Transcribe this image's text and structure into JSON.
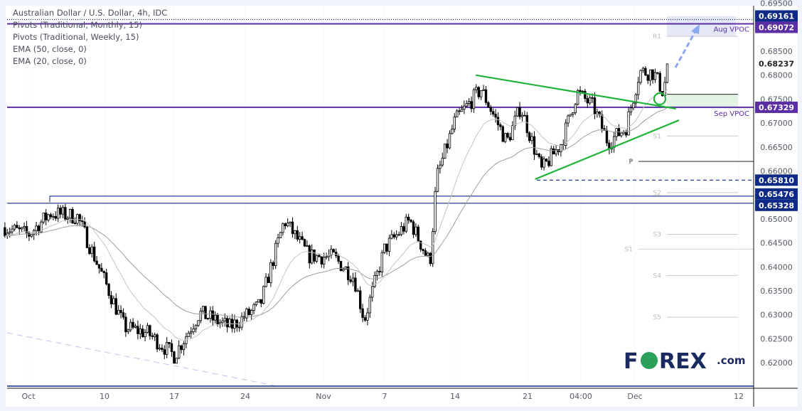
{
  "header": {
    "title": "Australian Dollar / U.S. Dollar, 4h, IDC",
    "indicators": [
      "Pivots (Traditional, Monthly, 15)",
      "Pivots (Traditional, Weekly, 15)",
      "EMA (50, close, 0)",
      "EMA (20, close, 0)"
    ]
  },
  "logo": {
    "text": "FOREX.com",
    "color": "#1a2a5e",
    "accent": "#2aa05a"
  },
  "chart_data": {
    "type": "candlestick",
    "symbol": "AUD/USD",
    "timeframe": "4h",
    "ylim": [
      0.6165,
      0.6955
    ],
    "x_tick_labels": [
      {
        "t": "Oct 3 00:00",
        "label": "Oct"
      },
      {
        "t": "Oct 10 00:00",
        "label": "10"
      },
      {
        "t": "Oct 17 00:00",
        "label": "17"
      },
      {
        "t": "Oct 24 00:00",
        "label": "24"
      },
      {
        "t": "Nov 1 00:00",
        "label": "Nov"
      },
      {
        "t": "Nov 7 00:00",
        "label": "7"
      },
      {
        "t": "Nov 14 00:00",
        "label": "14"
      },
      {
        "t": "Nov 21 00:00",
        "label": "21"
      },
      {
        "t": "Nov 28 00:00",
        "label": "04:00"
      },
      {
        "t": "Dec 1 00:00",
        "label": "Dec"
      },
      {
        "t": "Dec 12 00:00",
        "label": "12"
      }
    ],
    "y_ticks": [
      "0.69500",
      "0.68500",
      "0.68000",
      "0.67500",
      "0.67000",
      "0.66500",
      "0.66000",
      "0.65000",
      "0.64500",
      "0.64000",
      "0.63500",
      "0.63000",
      "0.62500",
      "0.62000"
    ],
    "approx_closes": [
      {
        "t": "Sep 30 20:00",
        "c": 0.6482
      },
      {
        "t": "Oct 3 00:00",
        "c": 0.6467
      },
      {
        "t": "Oct 5 00:00",
        "c": 0.6512
      },
      {
        "t": "Oct 7 12:00",
        "c": 0.6505
      },
      {
        "t": "Oct 10 04:00",
        "c": 0.6363
      },
      {
        "t": "Oct 12 00:00",
        "c": 0.6274
      },
      {
        "t": "Oct 14 08:00",
        "c": 0.6262
      },
      {
        "t": "Oct 17 00:00",
        "c": 0.6215
      },
      {
        "t": "Oct 19 12:00",
        "c": 0.6304
      },
      {
        "t": "Oct 22 12:00",
        "c": 0.6274
      },
      {
        "t": "Oct 25 12:00",
        "c": 0.6319
      },
      {
        "t": "Oct 28 00:00",
        "c": 0.6497
      },
      {
        "t": "Oct 30 12:00",
        "c": 0.6423
      },
      {
        "t": "Nov 2 00:00",
        "c": 0.642
      },
      {
        "t": "Nov 4 00:00",
        "c": 0.6378
      },
      {
        "t": "Nov 5 00:00",
        "c": 0.6289
      },
      {
        "t": "Nov 7 00:00",
        "c": 0.6438
      },
      {
        "t": "Nov 9 12:00",
        "c": 0.6497
      },
      {
        "t": "Nov 11 12:00",
        "c": 0.6408
      },
      {
        "t": "Nov 12 04:00",
        "c": 0.6586
      },
      {
        "t": "Nov 14 00:00",
        "c": 0.6705
      },
      {
        "t": "Nov 16 12:00",
        "c": 0.6771
      },
      {
        "t": "Nov 19 00:00",
        "c": 0.666
      },
      {
        "t": "Nov 20 08:00",
        "c": 0.6734
      },
      {
        "t": "Nov 22 20:00",
        "c": 0.6601
      },
      {
        "t": "Nov 25 12:00",
        "c": 0.666
      },
      {
        "t": "Nov 27 12:00",
        "c": 0.6764
      },
      {
        "t": "Nov 28 17:00",
        "c": 0.6734
      },
      {
        "t": "Nov 29 12:00",
        "c": 0.666
      },
      {
        "t": "Nov 30 12:00",
        "c": 0.669
      },
      {
        "t": "Dec 1 12:00",
        "c": 0.6808
      },
      {
        "t": "Dec 3 00:00",
        "c": 0.6805
      },
      {
        "t": "Dec 4 00:00",
        "c": 0.6764
      },
      {
        "t": "Dec 4 12:00",
        "c": 0.6824
      }
    ],
    "ema_periods": [
      50,
      20
    ],
    "price_badges": [
      {
        "value": "0.69161",
        "color": "#0c2a86",
        "line": "dotted"
      },
      {
        "value": "0.69072",
        "color": "#5b2ea6",
        "line": "solid"
      },
      {
        "value": "0.68237",
        "color": "#ffffff",
        "line": "none"
      },
      {
        "value": "0.67329",
        "color": "#5b2ea6",
        "line": "solid"
      },
      {
        "value": "0.65810",
        "color": "#0c2a86",
        "line": "dashed"
      },
      {
        "value": "0.65476",
        "color": "#0c2a86",
        "line": "solid"
      },
      {
        "value": "0.65328",
        "color": "#0c2a86",
        "line": "solid"
      }
    ],
    "pivots_weekly": [
      {
        "label": "R1",
        "value": 0.6881
      },
      {
        "label": "S1",
        "value": 0.6673
      },
      {
        "label": "S2",
        "value": 0.6555
      },
      {
        "label": "S3",
        "value": 0.6468
      },
      {
        "label": "S4",
        "value": 0.6382
      },
      {
        "label": "S5",
        "value": 0.6295
      }
    ],
    "pivots_monthly": [
      {
        "label": "P",
        "value": 0.662
      },
      {
        "label": "S1",
        "value": 0.6437
      }
    ],
    "annotations": {
      "aug_vpoc": {
        "label": "Aug VPOC",
        "value": 0.69072
      },
      "sep_vpoc": {
        "label": "Sep VPOC",
        "value": 0.67329
      },
      "support_zone": [
        0.6732,
        0.676
      ],
      "triangle_upper": [
        {
          "t": "Nov 16 00:00",
          "p": 0.68
        },
        {
          "t": "Dec 5 08:00",
          "p": 0.673
        }
      ],
      "triangle_lower": [
        {
          "t": "Nov 22 00:00",
          "p": 0.6583
        },
        {
          "t": "Dec 5 16:00",
          "p": 0.6706
        }
      ]
    },
    "colors": {
      "bull": "#ffffff",
      "bear": "#000000",
      "ema": "#b3b3b3",
      "triangle": "#1fb33a",
      "vpoc": "#5b2ea6",
      "level": "#0c2a86",
      "arrow": "#8aa8f0"
    }
  }
}
